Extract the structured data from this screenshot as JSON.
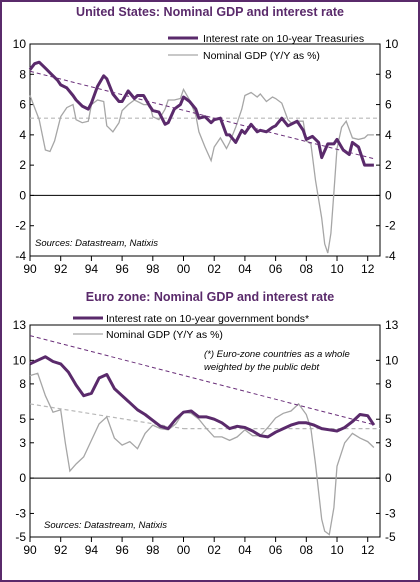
{
  "colors": {
    "rate": "#5a2a6b",
    "gdp": "#a6a6a6",
    "trend": "#6a2f7a",
    "dashed": "#b8b8b8",
    "title": "#5a2a6b"
  },
  "chart_data": [
    {
      "type": "line",
      "title": "United States: Nominal GDP and interest rate",
      "xlabel": "",
      "ylabel": "",
      "xlim": [
        1990,
        2012.8
      ],
      "ylim": [
        -4,
        10
      ],
      "xticks": [
        1990,
        1992,
        1994,
        1996,
        1998,
        2000,
        2002,
        2004,
        2006,
        2008,
        2010,
        2012
      ],
      "xtick_labels": [
        "90",
        "92",
        "94",
        "96",
        "98",
        "00",
        "02",
        "04",
        "06",
        "08",
        "10",
        "12"
      ],
      "yticks": [
        -4,
        -2,
        0,
        2,
        4,
        6,
        8,
        10
      ],
      "ytick_labels": [
        "-4",
        "-2",
        "0",
        "2",
        "4",
        "6",
        "8",
        "10"
      ],
      "legend": "top-right",
      "source": "Sources: Datastream, Natixis",
      "note": "",
      "reference_lines": {
        "zero": 0,
        "gdp_mean": 5.1
      },
      "trend": {
        "x": [
          1990,
          2012.5
        ],
        "y": [
          8.2,
          2.4
        ]
      },
      "series": [
        {
          "name": "Interest rate on 10-year Treasuries",
          "x": [
            1990,
            1990.3,
            1990.6,
            1991,
            1991.4,
            1991.8,
            1992,
            1992.4,
            1992.8,
            1993,
            1993.4,
            1993.8,
            1994,
            1994.4,
            1994.8,
            1995,
            1995.4,
            1995.8,
            1996,
            1996.4,
            1996.8,
            1997,
            1997.4,
            1997.8,
            1998,
            1998.4,
            1998.8,
            1999,
            1999.4,
            1999.8,
            2000,
            2000.4,
            2000.8,
            2001,
            2001.4,
            2001.8,
            2002,
            2002.4,
            2002.8,
            2003,
            2003.4,
            2003.8,
            2004,
            2004.4,
            2004.8,
            2005,
            2005.4,
            2005.8,
            2006,
            2006.4,
            2006.8,
            2007,
            2007.4,
            2007.8,
            2008,
            2008.4,
            2008.8,
            2009,
            2009.4,
            2009.8,
            2010,
            2010.4,
            2010.8,
            2011,
            2011.4,
            2011.8,
            2012,
            2012.4
          ],
          "y": [
            8.3,
            8.7,
            8.8,
            8.4,
            8.0,
            7.6,
            7.3,
            7.1,
            6.6,
            6.3,
            5.9,
            5.7,
            6.1,
            7.2,
            7.9,
            7.7,
            6.7,
            6.2,
            6.2,
            6.9,
            6.4,
            6.6,
            6.6,
            5.9,
            5.6,
            5.5,
            4.7,
            4.8,
            5.7,
            6.0,
            6.5,
            6.2,
            5.7,
            5.1,
            5.2,
            4.8,
            5.0,
            5.1,
            4.0,
            4.0,
            3.5,
            4.3,
            4.1,
            4.7,
            4.2,
            4.3,
            4.2,
            4.5,
            4.6,
            5.1,
            4.6,
            4.7,
            4.9,
            4.3,
            3.7,
            3.9,
            3.5,
            2.5,
            3.4,
            3.4,
            3.7,
            3.0,
            2.7,
            3.5,
            3.2,
            2.0,
            2.0,
            2.0
          ]
        },
        {
          "name": "Nominal GDP (Y/Y as %)",
          "x": [
            1990,
            1990.3,
            1990.6,
            1991,
            1991.3,
            1991.6,
            1992,
            1992.4,
            1992.8,
            1993,
            1993.4,
            1993.8,
            1994,
            1994.4,
            1994.8,
            1995,
            1995.4,
            1995.8,
            1996,
            1996.4,
            1996.8,
            1997,
            1997.4,
            1997.8,
            1998,
            1998.4,
            1998.8,
            1999,
            1999.4,
            1999.8,
            2000,
            2000.4,
            2000.8,
            2001,
            2001.4,
            2001.8,
            2002,
            2002.4,
            2002.8,
            2003,
            2003.4,
            2003.8,
            2004,
            2004.4,
            2004.8,
            2005,
            2005.4,
            2005.8,
            2006,
            2006.4,
            2006.8,
            2007,
            2007.4,
            2007.8,
            2008,
            2008.3,
            2008.6,
            2009,
            2009.2,
            2009.4,
            2009.6,
            2009.8,
            2010,
            2010.3,
            2010.6,
            2011,
            2011.4,
            2011.8,
            2012,
            2012.4
          ],
          "y": [
            6.6,
            5.8,
            5.0,
            3.0,
            2.9,
            3.6,
            5.2,
            5.8,
            6.0,
            5.0,
            4.8,
            4.9,
            6.0,
            6.3,
            6.2,
            4.6,
            4.2,
            4.8,
            5.6,
            6.0,
            6.3,
            6.2,
            6.0,
            6.0,
            5.2,
            5.0,
            5.7,
            6.3,
            6.3,
            6.4,
            7.0,
            6.3,
            5.3,
            4.2,
            3.2,
            2.3,
            3.2,
            3.8,
            3.1,
            3.5,
            4.5,
            5.7,
            6.6,
            6.8,
            6.5,
            6.7,
            6.2,
            6.5,
            6.4,
            6.1,
            5.0,
            4.8,
            4.9,
            4.9,
            3.6,
            3.4,
            1.0,
            -1.5,
            -3.2,
            -3.8,
            -2.5,
            0.2,
            3.1,
            4.5,
            4.9,
            3.8,
            3.7,
            3.8,
            4.0,
            4.0
          ]
        }
      ]
    },
    {
      "type": "line",
      "title": "Euro zone: Nominal GDP and interest rate",
      "xlabel": "",
      "ylabel": "",
      "xlim": [
        1990,
        2012.8
      ],
      "ylim": [
        -5,
        13
      ],
      "xticks": [
        1990,
        1992,
        1994,
        1996,
        1998,
        2000,
        2002,
        2004,
        2006,
        2008,
        2010,
        2012
      ],
      "xtick_labels": [
        "90",
        "92",
        "94",
        "96",
        "98",
        "00",
        "02",
        "04",
        "06",
        "08",
        "10",
        "12"
      ],
      "yticks": [
        -5,
        -3,
        0,
        3,
        5,
        8,
        10,
        13
      ],
      "ytick_labels": [
        "-5",
        "-3",
        "0",
        "3",
        "5",
        "8",
        "10",
        "13"
      ],
      "legend": "top-right",
      "source": "Sources: Datastream, Natixis",
      "note": "(*) Euro-zone countries as a whole weighted by the public debt",
      "reference_lines": {
        "zero": 0,
        "gdp_mean": 4.2
      },
      "trend": {
        "x": [
          1990,
          2012.5
        ],
        "y": [
          12.1,
          4.5
        ]
      },
      "gdp_trend": {
        "x": [
          1990,
          2000
        ],
        "y": [
          6.3,
          4.2
        ]
      },
      "series": [
        {
          "name": "Interest rate on 10-year government bonds*",
          "x": [
            1990,
            1990.5,
            1991,
            1991.5,
            1992,
            1992.5,
            1993,
            1993.5,
            1994,
            1994.5,
            1995,
            1995.5,
            1996,
            1996.5,
            1997,
            1997.5,
            1998,
            1998.5,
            1999,
            1999.5,
            2000,
            2000.5,
            2001,
            2001.5,
            2002,
            2002.5,
            2003,
            2003.5,
            2004,
            2004.5,
            2005,
            2005.5,
            2006,
            2006.5,
            2007,
            2007.5,
            2008,
            2008.5,
            2009,
            2009.5,
            2010,
            2010.5,
            2011,
            2011.5,
            2012,
            2012.4
          ],
          "y": [
            9.7,
            10.0,
            10.3,
            9.9,
            9.7,
            9.0,
            7.9,
            7.0,
            7.2,
            8.5,
            8.8,
            7.6,
            7.0,
            6.4,
            5.8,
            5.4,
            4.9,
            4.4,
            4.2,
            5.0,
            5.6,
            5.7,
            5.2,
            5.2,
            5.0,
            4.7,
            4.2,
            4.4,
            4.3,
            4.0,
            3.6,
            3.5,
            3.9,
            4.2,
            4.5,
            4.7,
            4.7,
            4.5,
            4.2,
            4.1,
            4.0,
            4.3,
            4.8,
            5.4,
            5.3,
            4.5
          ]
        },
        {
          "name": "Nominal GDP (Y/Y as %)",
          "x": [
            1990,
            1990.5,
            1991,
            1991.5,
            1992,
            1992.3,
            1992.6,
            1993,
            1993.5,
            1994,
            1994.5,
            1995,
            1995.5,
            1996,
            1996.5,
            1997,
            1997.5,
            1998,
            1998.5,
            1999,
            1999.5,
            2000,
            2000.5,
            2001,
            2001.5,
            2002,
            2002.5,
            2003,
            2003.5,
            2004,
            2004.5,
            2005,
            2005.5,
            2006,
            2006.5,
            2007,
            2007.5,
            2008,
            2008.3,
            2008.6,
            2009,
            2009.2,
            2009.5,
            2009.8,
            2010,
            2010.5,
            2011,
            2011.5,
            2012,
            2012.4
          ],
          "y": [
            8.7,
            8.9,
            7.0,
            5.6,
            5.8,
            3.0,
            0.6,
            1.2,
            1.8,
            3.2,
            4.6,
            5.2,
            3.4,
            2.8,
            3.1,
            2.5,
            3.8,
            4.5,
            4.2,
            4.1,
            4.6,
            5.6,
            5.5,
            5.0,
            4.2,
            3.5,
            3.5,
            3.2,
            3.5,
            4.1,
            3.6,
            3.6,
            4.3,
            5.1,
            5.5,
            5.7,
            6.3,
            5.4,
            4.2,
            1.2,
            -3.5,
            -4.5,
            -4.8,
            -2.5,
            1.0,
            3.0,
            3.8,
            3.4,
            3.1,
            2.6
          ]
        }
      ]
    }
  ]
}
